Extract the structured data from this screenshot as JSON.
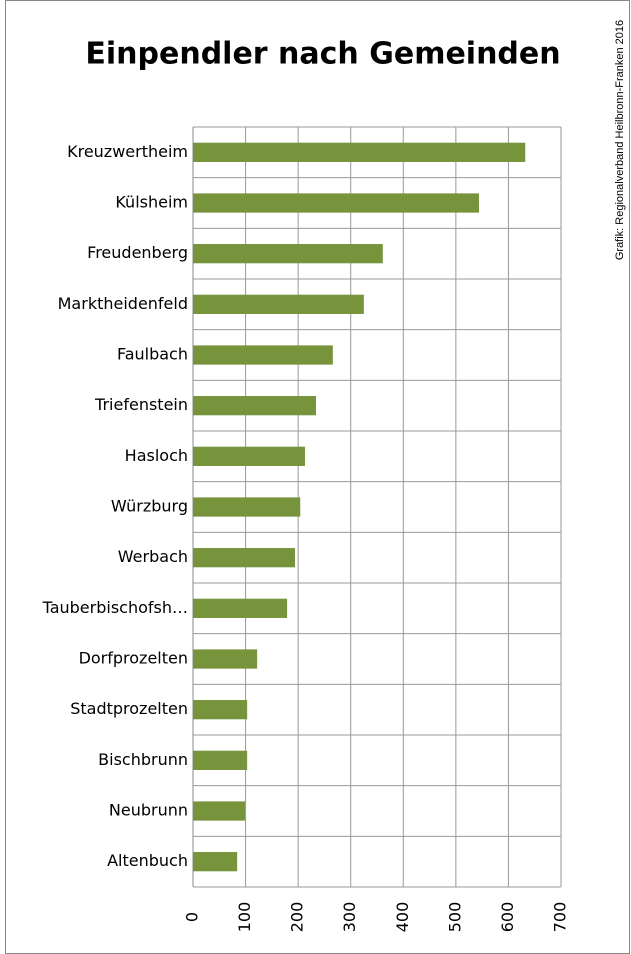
{
  "chart_data": {
    "type": "bar",
    "orientation": "horizontal",
    "title": "Einpendler nach Gemeinden",
    "source": "Grafik: Regionalverband Heilbronn-Franken 2016",
    "categories": [
      "Kreuzwertheim",
      "Külsheim",
      "Freudenberg",
      "Marktheidenfeld",
      "Faulbach",
      "Triefenstein",
      "Hasloch",
      "Würzburg",
      "Werbach",
      "Tauberbischofsh…",
      "Dorfprozelten",
      "Stadtprozelten",
      "Bischbrunn",
      "Neubrunn",
      "Altenbuch"
    ],
    "values": [
      632,
      544,
      361,
      325,
      266,
      234,
      213,
      204,
      194,
      179,
      122,
      103,
      103,
      99,
      84
    ],
    "color": "#77933c",
    "xlim": [
      0,
      700
    ],
    "xticks": [
      0,
      100,
      200,
      300,
      400,
      500,
      600,
      700
    ],
    "grid": true
  }
}
